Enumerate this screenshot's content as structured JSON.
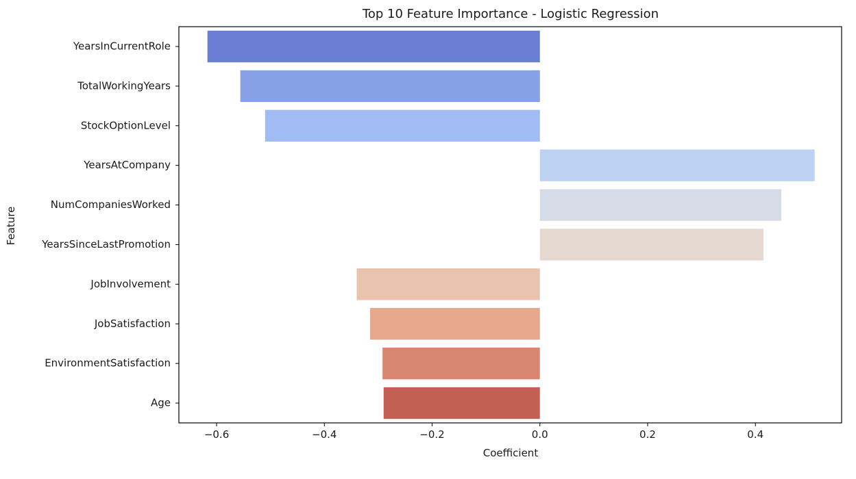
{
  "chart_data": {
    "type": "bar",
    "orientation": "horizontal",
    "title": "Top 10 Feature Importance - Logistic Regression",
    "xlabel": "Coefficient",
    "ylabel": "Feature",
    "categories": [
      "YearsInCurrentRole",
      "TotalWorkingYears",
      "StockOptionLevel",
      "YearsAtCompany",
      "NumCompaniesWorked",
      "YearsSinceLastPromotion",
      "JobInvolvement",
      "JobSatisfaction",
      "EnvironmentSatisfaction",
      "Age"
    ],
    "values": [
      -0.617,
      -0.556,
      -0.51,
      0.51,
      0.448,
      0.415,
      -0.34,
      -0.315,
      -0.292,
      -0.29
    ],
    "colors": [
      "#6a7fd3",
      "#86a1e6",
      "#a1bcf4",
      "#bdd1f1",
      "#d5dce7",
      "#e5d8d0",
      "#eac3ae",
      "#e6a78b",
      "#d8866f",
      "#c35f53"
    ],
    "xlim": [
      -0.67,
      0.56
    ],
    "xticks": [
      -0.6,
      -0.4,
      -0.2,
      0.0,
      0.2,
      0.4
    ],
    "xtick_labels": [
      "−0.6",
      "−0.4",
      "−0.2",
      "0.0",
      "0.2",
      "0.4"
    ],
    "grid": false,
    "legend": "none"
  }
}
